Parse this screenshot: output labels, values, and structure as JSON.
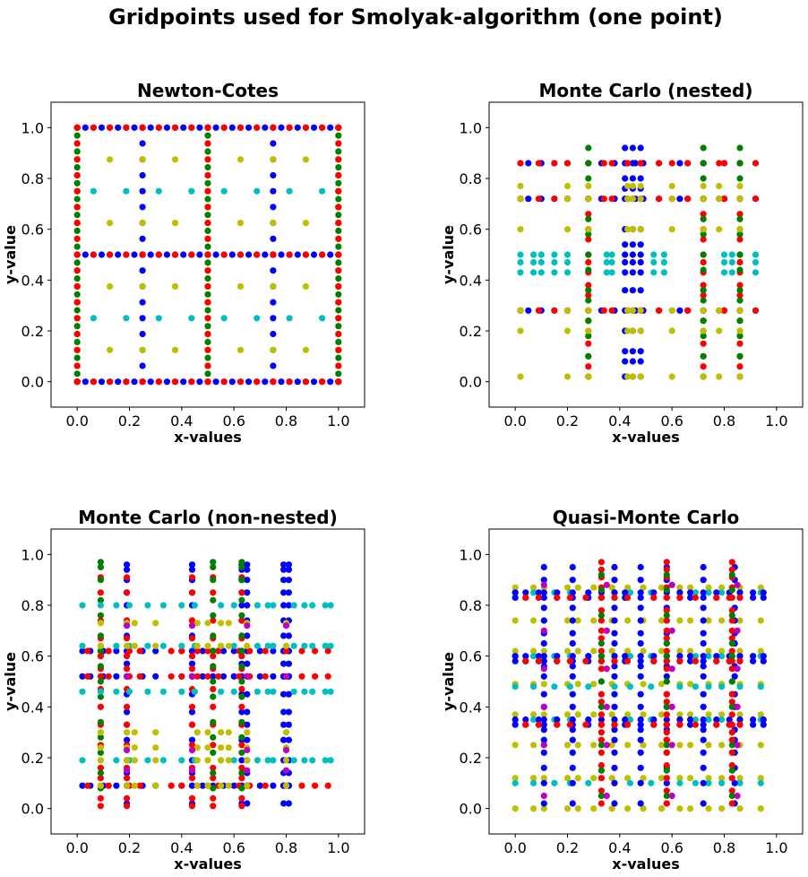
{
  "figure": {
    "title": "Gridpoints used for Smolyak-algorithm (one point)"
  },
  "colors": {
    "blue": "#0000ff",
    "red": "#ff0000",
    "green": "#008000",
    "yellow": "#bfbf00",
    "cyan": "#00bfbf",
    "magenta": "#bf00bf"
  },
  "chart_data": [
    {
      "type": "scatter",
      "title": "Newton-Cotes",
      "xlabel": "x-values",
      "ylabel": "y-value",
      "xlim": [
        -0.1,
        1.1
      ],
      "ylim": [
        -0.1,
        1.1
      ],
      "xticks": [
        "0.0",
        "0.2",
        "0.4",
        "0.6",
        "0.8",
        "1.0"
      ],
      "yticks": [
        "0.0",
        "0.2",
        "0.4",
        "0.6",
        "0.8",
        "1.0"
      ],
      "grid": false,
      "series": [
        {
          "color": "blue",
          "lines": [
            {
              "axis": "h",
              "at": 0.0,
              "from": 0.0,
              "to": 1.0,
              "n": 33
            },
            {
              "axis": "h",
              "at": 0.5,
              "from": 0.0,
              "to": 1.0,
              "n": 33
            },
            {
              "axis": "h",
              "at": 1.0,
              "from": 0.0,
              "to": 1.0,
              "n": 33
            },
            {
              "axis": "v",
              "at": 0.25,
              "from": 0.0,
              "to": 1.0,
              "n": 17
            },
            {
              "axis": "v",
              "at": 0.75,
              "from": 0.0,
              "to": 1.0,
              "n": 17
            }
          ]
        },
        {
          "color": "green",
          "lines": [
            {
              "axis": "v",
              "at": 0.0,
              "from": 0.0,
              "to": 1.0,
              "n": 33
            },
            {
              "axis": "v",
              "at": 0.5,
              "from": 0.0,
              "to": 1.0,
              "n": 33
            },
            {
              "axis": "v",
              "at": 1.0,
              "from": 0.0,
              "to": 1.0,
              "n": 33
            }
          ]
        },
        {
          "color": "cyan",
          "lines": [
            {
              "axis": "h",
              "at": 0.25,
              "from": 0.0625,
              "to": 0.9375,
              "n": 8
            },
            {
              "axis": "h",
              "at": 0.75,
              "from": 0.0625,
              "to": 0.9375,
              "n": 8
            }
          ]
        },
        {
          "color": "yellow",
          "points": [
            [
              0.125,
              0.125
            ],
            [
              0.375,
              0.125
            ],
            [
              0.625,
              0.125
            ],
            [
              0.875,
              0.125
            ],
            [
              0.125,
              0.375
            ],
            [
              0.375,
              0.375
            ],
            [
              0.625,
              0.375
            ],
            [
              0.875,
              0.375
            ],
            [
              0.125,
              0.625
            ],
            [
              0.375,
              0.625
            ],
            [
              0.625,
              0.625
            ],
            [
              0.875,
              0.625
            ],
            [
              0.125,
              0.875
            ],
            [
              0.375,
              0.875
            ],
            [
              0.625,
              0.875
            ],
            [
              0.875,
              0.875
            ],
            [
              0.0,
              0.125
            ],
            [
              0.0,
              0.375
            ],
            [
              0.0,
              0.625
            ],
            [
              0.0,
              0.875
            ],
            [
              0.25,
              0.125
            ],
            [
              0.25,
              0.375
            ],
            [
              0.25,
              0.625
            ],
            [
              0.25,
              0.875
            ],
            [
              0.5,
              0.125
            ],
            [
              0.5,
              0.375
            ],
            [
              0.5,
              0.625
            ],
            [
              0.5,
              0.875
            ],
            [
              0.75,
              0.125
            ],
            [
              0.75,
              0.375
            ],
            [
              0.75,
              0.625
            ],
            [
              0.75,
              0.875
            ],
            [
              1.0,
              0.125
            ],
            [
              1.0,
              0.375
            ],
            [
              1.0,
              0.625
            ],
            [
              1.0,
              0.875
            ]
          ]
        },
        {
          "color": "red",
          "lines": [
            {
              "axis": "h",
              "at": 0.0,
              "from": 0.0,
              "to": 1.0,
              "n": 17
            },
            {
              "axis": "h",
              "at": 0.5,
              "from": 0.0,
              "to": 1.0,
              "n": 17
            },
            {
              "axis": "h",
              "at": 1.0,
              "from": 0.0,
              "to": 1.0,
              "n": 17
            },
            {
              "axis": "v",
              "at": 0.0,
              "from": 0.0,
              "to": 1.0,
              "n": 17
            },
            {
              "axis": "v",
              "at": 0.5,
              "from": 0.0,
              "to": 1.0,
              "n": 17
            },
            {
              "axis": "v",
              "at": 1.0,
              "from": 0.0,
              "to": 1.0,
              "n": 17
            }
          ]
        }
      ]
    },
    {
      "type": "scatter",
      "title": "Monte Carlo (nested)",
      "xlabel": "x-values",
      "ylabel": "y-value",
      "xlim": [
        -0.1,
        1.1
      ],
      "ylim": [
        -0.1,
        1.1
      ],
      "xticks": [
        "0.0",
        "0.2",
        "0.4",
        "0.6",
        "0.8",
        "1.0"
      ],
      "yticks": [
        "0.0",
        "0.2",
        "0.4",
        "0.6",
        "0.8",
        "1.0"
      ],
      "grid": false,
      "series": [
        {
          "color": "blue",
          "grid": {
            "xs": [
              0.02,
              0.05,
              0.1,
              0.15,
              0.2,
              0.28,
              0.33,
              0.38,
              0.43,
              0.46,
              0.49,
              0.55,
              0.63,
              0.66,
              0.72,
              0.8,
              0.86,
              0.92
            ],
            "ys": [
              0.28,
              0.72,
              0.86
            ]
          }
        },
        {
          "color": "blue",
          "grid": {
            "xs": [
              0.42,
              0.45,
              0.48
            ],
            "ys": [
              0.02,
              0.08,
              0.12,
              0.2,
              0.28,
              0.36,
              0.43,
              0.47,
              0.5,
              0.54,
              0.6,
              0.72,
              0.76,
              0.8,
              0.86,
              0.92
            ]
          }
        },
        {
          "color": "red",
          "grid": {
            "xs": [
              0.02,
              0.09,
              0.15,
              0.2,
              0.28,
              0.34,
              0.37,
              0.43,
              0.48,
              0.55,
              0.6,
              0.66,
              0.72,
              0.78,
              0.8,
              0.86,
              0.92
            ],
            "ys": [
              0.28,
              0.72,
              0.86
            ]
          }
        },
        {
          "color": "red",
          "grid": {
            "xs": [
              0.28,
              0.72,
              0.86
            ],
            "ys": [
              0.02,
              0.06,
              0.1,
              0.15,
              0.2,
              0.24,
              0.28,
              0.34,
              0.38,
              0.43,
              0.47,
              0.5,
              0.56,
              0.6,
              0.66,
              0.72,
              0.86
            ]
          }
        },
        {
          "color": "green",
          "grid": {
            "xs": [
              0.28,
              0.72,
              0.86
            ],
            "ys": [
              0.02,
              0.1,
              0.18,
              0.24,
              0.32,
              0.36,
              0.44,
              0.5,
              0.58,
              0.64,
              0.72,
              0.8,
              0.86,
              0.92
            ]
          }
        },
        {
          "color": "yellow",
          "grid": {
            "xs": [
              0.02,
              0.2,
              0.28,
              0.43,
              0.45,
              0.48,
              0.6,
              0.72,
              0.78,
              0.86
            ],
            "ys": [
              0.02,
              0.2,
              0.28,
              0.6,
              0.72,
              0.77
            ]
          }
        },
        {
          "color": "cyan",
          "grid": {
            "xs": [
              0.02,
              0.07,
              0.1,
              0.15,
              0.2,
              0.35,
              0.37,
              0.53,
              0.57,
              0.8,
              0.83,
              0.92
            ],
            "ys": [
              0.43,
              0.47,
              0.5
            ]
          }
        }
      ]
    },
    {
      "type": "scatter",
      "title": "Monte Carlo (non-nested)",
      "xlabel": "x-values",
      "ylabel": "y-value",
      "xlim": [
        -0.1,
        1.1
      ],
      "ylim": [
        -0.1,
        1.1
      ],
      "xticks": [
        "0.0",
        "0.2",
        "0.4",
        "0.6",
        "0.8",
        "1.0"
      ],
      "yticks": [
        "0.0",
        "0.2",
        "0.4",
        "0.6",
        "0.8",
        "1.0"
      ],
      "grid": false,
      "series": [
        {
          "color": "blue",
          "grid": {
            "xs": [
              0.02,
              0.05,
              0.1,
              0.15,
              0.19,
              0.25,
              0.3,
              0.4,
              0.44,
              0.48,
              0.52,
              0.56,
              0.6,
              0.63,
              0.65,
              0.7,
              0.75,
              0.79,
              0.81
            ],
            "ys": [
              0.09,
              0.52,
              0.62
            ]
          }
        },
        {
          "color": "blue",
          "grid": {
            "xs": [
              0.19,
              0.44,
              0.63,
              0.65,
              0.79,
              0.81
            ],
            "ys": [
              0.02,
              0.09,
              0.14,
              0.19,
              0.27,
              0.33,
              0.38,
              0.45,
              0.52,
              0.57,
              0.62,
              0.68,
              0.74,
              0.8,
              0.85,
              0.9,
              0.94,
              0.96
            ]
          }
        },
        {
          "color": "red",
          "grid": {
            "xs": [
              0.04,
              0.09,
              0.12,
              0.2,
              0.24,
              0.36,
              0.4,
              0.46,
              0.5,
              0.54,
              0.62,
              0.66,
              0.72,
              0.8,
              0.86,
              0.91,
              0.96
            ],
            "ys": [
              0.09,
              0.52,
              0.62
            ]
          }
        },
        {
          "color": "red",
          "grid": {
            "xs": [
              0.09,
              0.19,
              0.44,
              0.52,
              0.63
            ],
            "ys": [
              0.01,
              0.04,
              0.12,
              0.16,
              0.25,
              0.33,
              0.4,
              0.47,
              0.55,
              0.6,
              0.67,
              0.74,
              0.85,
              0.91
            ]
          }
        },
        {
          "color": "green",
          "grid": {
            "xs": [
              0.09,
              0.52,
              0.63
            ],
            "ys": [
              0.08,
              0.14,
              0.22,
              0.28,
              0.34,
              0.44,
              0.5,
              0.56,
              0.62,
              0.68,
              0.76,
              0.82,
              0.9,
              0.95,
              0.97
            ]
          }
        },
        {
          "color": "cyan",
          "grid": {
            "xs": [
              0.02,
              0.09,
              0.15,
              0.2,
              0.27,
              0.33,
              0.4,
              0.45,
              0.55,
              0.6,
              0.69,
              0.73,
              0.75,
              0.83,
              0.87,
              0.9,
              0.95,
              0.97
            ],
            "ys": [
              0.19,
              0.46,
              0.64,
              0.8
            ]
          }
        },
        {
          "color": "yellow",
          "grid": {
            "xs": [
              0.09,
              0.19,
              0.22,
              0.3,
              0.46,
              0.5,
              0.55,
              0.58,
              0.65,
              0.8
            ],
            "ys": [
              0.09,
              0.19,
              0.24,
              0.3,
              0.64,
              0.73
            ]
          }
        },
        {
          "color": "magenta",
          "grid": {
            "xs": [
              0.19,
              0.44,
              0.65,
              0.8
            ],
            "ys": [
              0.15,
              0.23,
              0.52,
              0.72
            ]
          }
        }
      ]
    },
    {
      "type": "scatter",
      "title": "Quasi-Monte Carlo",
      "xlabel": "x-values",
      "ylabel": "y-value",
      "xlim": [
        -0.1,
        1.1
      ],
      "ylim": [
        -0.1,
        1.1
      ],
      "xticks": [
        "0.0",
        "0.2",
        "0.4",
        "0.6",
        "0.8",
        "1.0"
      ],
      "yticks": [
        "0.0",
        "0.2",
        "0.4",
        "0.6",
        "0.8",
        "1.0"
      ],
      "grid": false,
      "series": [
        {
          "color": "yellow",
          "grid": {
            "xs": [
              0.0,
              0.07,
              0.11,
              0.2,
              0.24,
              0.3,
              0.37,
              0.43,
              0.49,
              0.56,
              0.63,
              0.67,
              0.74,
              0.79,
              0.86,
              0.94
            ],
            "ys": [
              0.0,
              0.12,
              0.25,
              0.37,
              0.49,
              0.62,
              0.74,
              0.87
            ]
          }
        },
        {
          "color": "cyan",
          "grid": {
            "xs": [
              0.0,
              0.07,
              0.15,
              0.21,
              0.28,
              0.38,
              0.44,
              0.52,
              0.63,
              0.69,
              0.74,
              0.79,
              0.86,
              0.94
            ],
            "ys": [
              0.1,
              0.35,
              0.48,
              0.6,
              0.85
            ]
          }
        },
        {
          "color": "blue",
          "grid": {
            "xs": [
              0.0,
              0.04,
              0.09,
              0.11,
              0.16,
              0.22,
              0.28,
              0.33,
              0.38,
              0.42,
              0.48,
              0.53,
              0.58,
              0.63,
              0.67,
              0.72,
              0.77,
              0.82,
              0.86,
              0.91,
              0.95
            ],
            "ys": [
              0.33,
              0.35,
              0.58,
              0.6,
              0.83,
              0.85
            ]
          }
        },
        {
          "color": "blue",
          "grid": {
            "xs": [
              0.11,
              0.22,
              0.38,
              0.48,
              0.58,
              0.72,
              0.84
            ],
            "ys": [
              0.02,
              0.1,
              0.16,
              0.22,
              0.27,
              0.31,
              0.4,
              0.45,
              0.52,
              0.56,
              0.65,
              0.69,
              0.74,
              0.79,
              0.9,
              0.95
            ]
          }
        },
        {
          "color": "red",
          "grid": {
            "xs": [
              0.04,
              0.09,
              0.16,
              0.21,
              0.27,
              0.33,
              0.38,
              0.43,
              0.53,
              0.58,
              0.63,
              0.69,
              0.77,
              0.82,
              0.86
            ],
            "ys": [
              0.33,
              0.58,
              0.83
            ]
          }
        },
        {
          "color": "red",
          "grid": {
            "xs": [
              0.33,
              0.58,
              0.83
            ],
            "ys": [
              0.02,
              0.07,
              0.12,
              0.17,
              0.22,
              0.27,
              0.3,
              0.33,
              0.37,
              0.42,
              0.45,
              0.5,
              0.55,
              0.58,
              0.62,
              0.67,
              0.7,
              0.74,
              0.78,
              0.83,
              0.87,
              0.91,
              0.94,
              0.97
            ]
          }
        },
        {
          "color": "green",
          "grid": {
            "xs": [
              0.33,
              0.58,
              0.83
            ],
            "ys": [
              0.05,
              0.15,
              0.25,
              0.4,
              0.5,
              0.6,
              0.65,
              0.76,
              0.86,
              0.92
            ]
          }
        },
        {
          "color": "magenta",
          "grid": {
            "xs": [
              0.11,
              0.35,
              0.6,
              0.85
            ],
            "ys": [
              0.05,
              0.25,
              0.4,
              0.55,
              0.7,
              0.88
            ]
          }
        }
      ]
    }
  ]
}
